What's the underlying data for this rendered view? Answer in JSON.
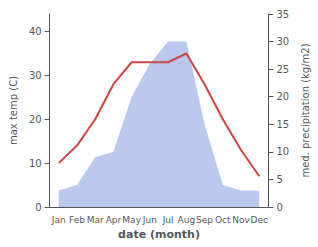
{
  "chart_data": {
    "type": "line",
    "categories": [
      "Jan",
      "Feb",
      "Mar",
      "Apr",
      "May",
      "Jun",
      "Jul",
      "Aug",
      "Sep",
      "Oct",
      "Nov",
      "Dec"
    ],
    "series": [
      {
        "type": "area",
        "color": "#bbc8ee",
        "axis": "y2",
        "values": [
          3,
          4,
          9,
          10,
          20,
          26,
          30,
          30,
          15,
          4,
          3,
          3
        ]
      },
      {
        "type": "line",
        "color": "#cc4444",
        "values": [
          10,
          14,
          20,
          28,
          33,
          33,
          33,
          35,
          28,
          20,
          13,
          7
        ]
      }
    ],
    "xlabel": "date (month)",
    "ylabel": "max temp (C)",
    "y2label": "med. precipitation (kg/m2)",
    "ylim": [
      0,
      44
    ],
    "yticks": [
      0,
      10,
      20,
      30,
      40
    ],
    "y2lim": [
      0,
      35
    ],
    "y2ticks": [
      0,
      5,
      10,
      15,
      20,
      25,
      30,
      35
    ],
    "grid": false
  }
}
